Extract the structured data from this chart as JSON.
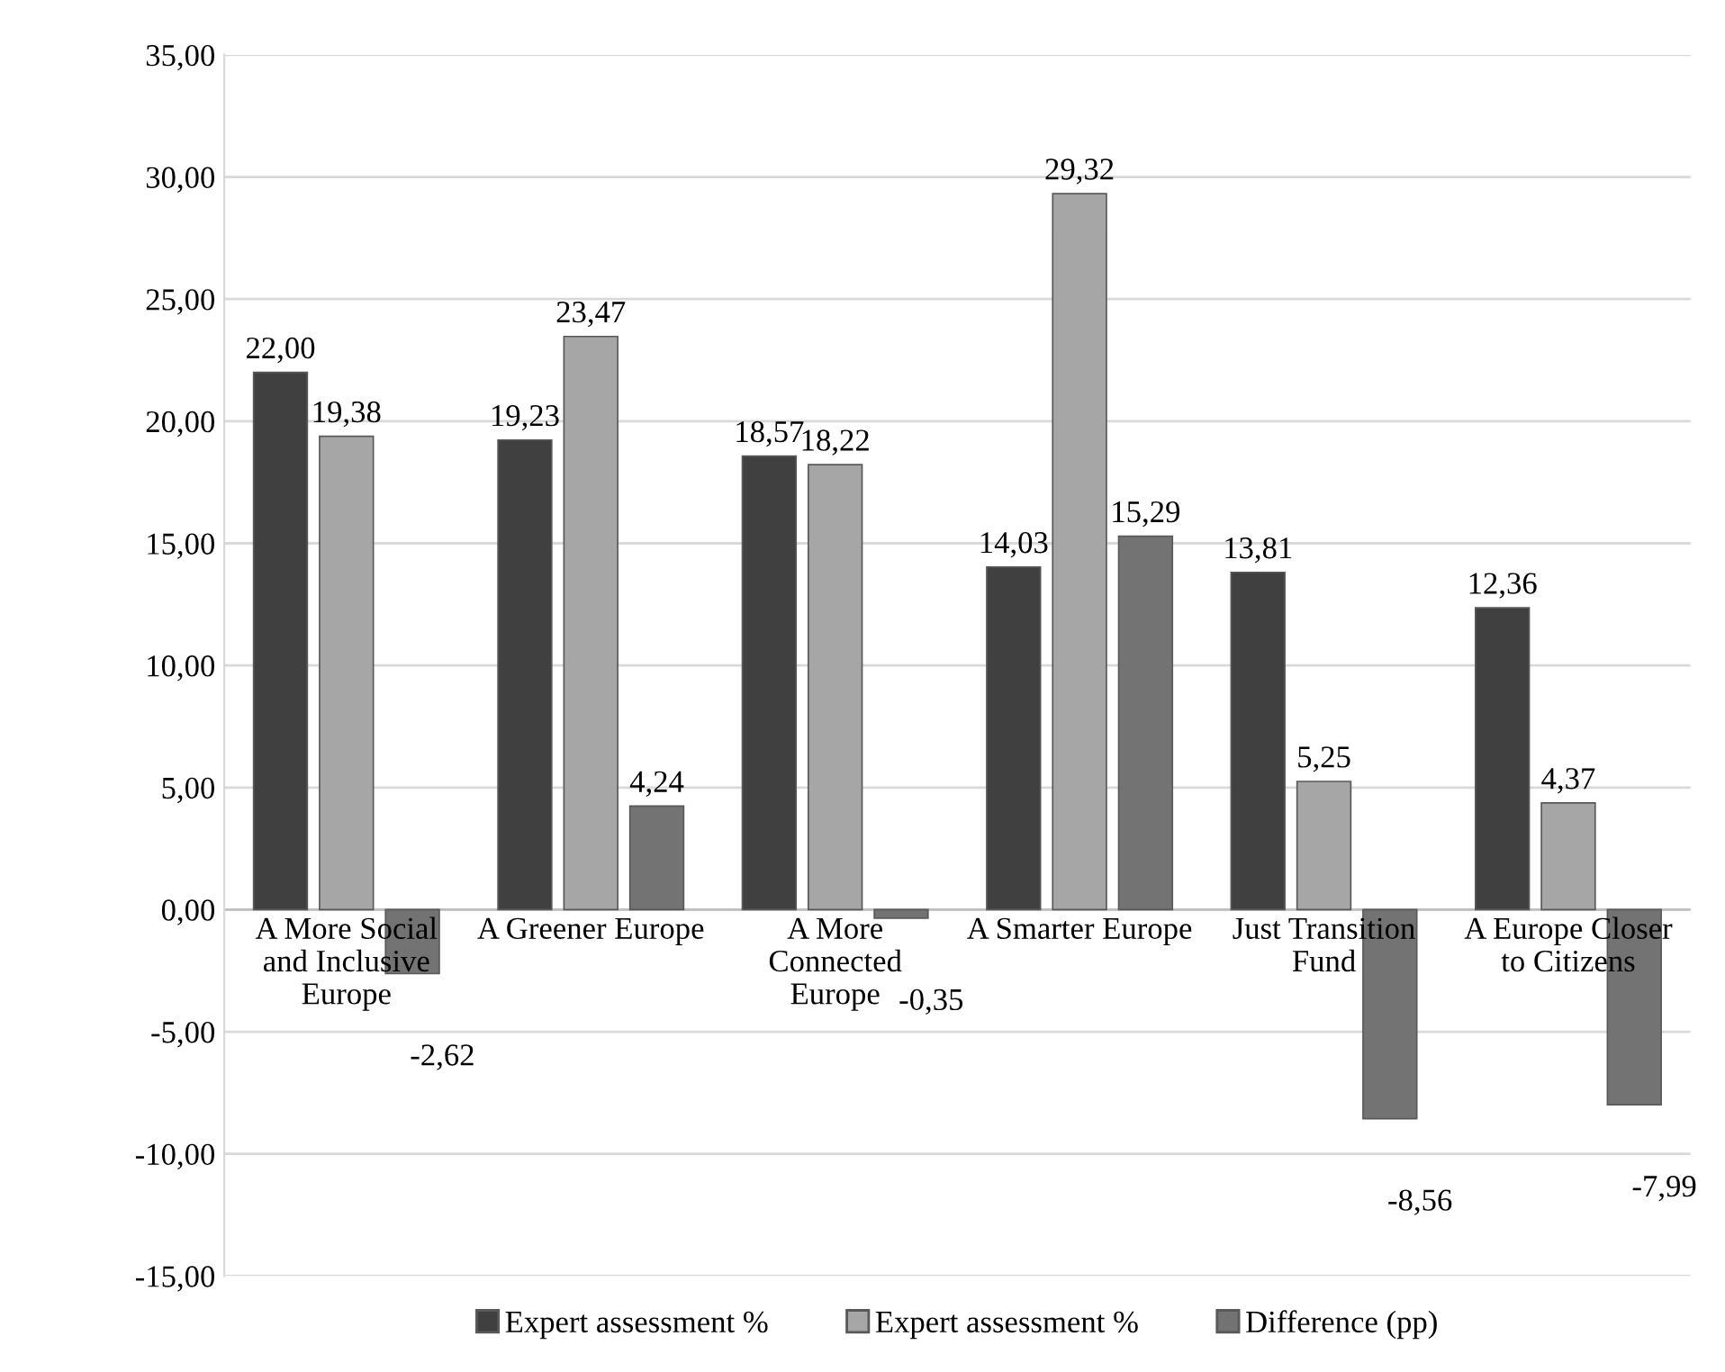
{
  "chart_data": {
    "type": "bar",
    "categories": [
      "A More Social\nand Inclusive\nEurope",
      "A Greener Europe",
      "A More\nConnected\nEurope",
      "A Smarter Europe",
      "Just Transition\nFund",
      "A Europe Closer\nto Citizens"
    ],
    "series": [
      {
        "name": "Expert assessment %",
        "color": "#404040",
        "values": [
          22.0,
          19.23,
          18.57,
          14.03,
          13.81,
          12.36
        ],
        "value_labels": [
          "22,00",
          "19,23",
          "18,57",
          "14,03",
          "13,81",
          "12,36"
        ]
      },
      {
        "name": "Expert assessment %",
        "color": "#a6a6a6",
        "values": [
          19.38,
          23.47,
          18.22,
          29.32,
          5.25,
          4.37
        ],
        "value_labels": [
          "19,38",
          "23,47",
          "18,22",
          "29,32",
          "5,25",
          "4,37"
        ]
      },
      {
        "name": "Difference (pp)",
        "color": "#737373",
        "values": [
          -2.62,
          4.24,
          -0.35,
          15.29,
          -8.56,
          -7.99
        ],
        "value_labels": [
          "-2,62",
          "4,24",
          "-0,35",
          "15,29",
          "-8,56",
          "-7,99"
        ]
      }
    ],
    "ylim": [
      -15,
      35
    ],
    "yticks": [
      {
        "value": -15,
        "label": "-15,00"
      },
      {
        "value": -10,
        "label": "-10,00"
      },
      {
        "value": -5,
        "label": "-5,00"
      },
      {
        "value": 0,
        "label": "0,00"
      },
      {
        "value": 5,
        "label": "5,00"
      },
      {
        "value": 10,
        "label": "10,00"
      },
      {
        "value": 15,
        "label": "15,00"
      },
      {
        "value": 20,
        "label": "20,00"
      },
      {
        "value": 25,
        "label": "25,00"
      },
      {
        "value": 30,
        "label": "30,00"
      },
      {
        "value": 35,
        "label": "35,00"
      }
    ],
    "grid": "y",
    "legend": "bottom"
  }
}
